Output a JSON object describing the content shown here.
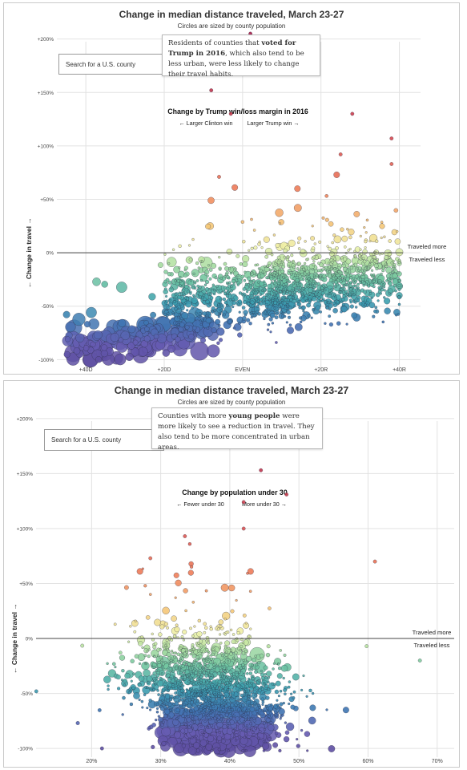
{
  "panels": [
    {
      "title": "Change in median distance traveled, March 23-27",
      "subtitle": "Circles are sized by county population",
      "search_placeholder": "Search for a U.S. county",
      "note": {
        "pre": "Residents of counties that ",
        "bold": "voted for Trump in 2016",
        "post": ", which also tend to be less urban, were less likely to change their travel habits."
      },
      "subheading": "Change by Trump win/loss margin in 2016",
      "left_hint": "← Larger Clinton win",
      "right_hint": "Larger Trump win →",
      "ylabel": "← Change in travel →",
      "above_label": "Traveled more",
      "below_label": "Traveled less",
      "chart_data": {
        "type": "scatter",
        "title": "Change in median distance traveled, March 23-27",
        "xlabel": "Trump win/loss margin in 2016",
        "ylabel": "Change in travel",
        "x_ticks": [
          "+40D",
          "+20D",
          "EVEN",
          "+20R",
          "+40R"
        ],
        "y_ticks": [
          "+200%",
          "+150%",
          "+100%",
          "+50%",
          "0%",
          "-50%",
          "-100%"
        ],
        "xlim": [
          -48,
          45
        ],
        "ylim": [
          -105,
          205
        ],
        "grid": true,
        "color_encoding": "change in travel (purple = lower, red = higher)",
        "size_encoding": "county population",
        "trend": "travel change rises from about -85% in large Clinton-won counties to about -25% in large Trump-won counties",
        "notable_points": [
          {
            "x": -43,
            "y": -70,
            "size": "large"
          },
          {
            "x": -35,
            "y": -95,
            "size": "large"
          },
          {
            "x": -26,
            "y": -96,
            "size": "large"
          },
          {
            "x": -16,
            "y": -90,
            "size": "large"
          },
          {
            "x": 2,
            "y": 205,
            "size": "small"
          },
          {
            "x": -8,
            "y": 152,
            "size": "small"
          },
          {
            "x": -3,
            "y": 130,
            "size": "small"
          },
          {
            "x": 28,
            "y": 130,
            "size": "small"
          },
          {
            "x": 38,
            "y": 107,
            "size": "small"
          },
          {
            "x": 25,
            "y": 92,
            "size": "small"
          },
          {
            "x": 38,
            "y": 83,
            "size": "small"
          },
          {
            "x": 24,
            "y": 73,
            "size": "medium"
          },
          {
            "x": -6,
            "y": 71,
            "size": "small"
          },
          {
            "x": -2,
            "y": 61,
            "size": "medium"
          },
          {
            "x": 14,
            "y": 60,
            "size": "medium"
          }
        ]
      }
    },
    {
      "title": "Change in median distance traveled, March 23-27",
      "subtitle": "Circles are sized by county population",
      "search_placeholder": "Search for a U.S. county",
      "note": {
        "pre": "Counties with more ",
        "bold": "young people",
        "post": " were more likely to see a reduction in travel. They also tend to be more concentrated in urban areas."
      },
      "subheading": "Change by population under 30",
      "left_hint": "← Fewer under 30",
      "right_hint": "More under 30 →",
      "ylabel": "← Change in travel →",
      "above_label": "Traveled more",
      "below_label": "Traveled less",
      "chart_data": {
        "type": "scatter",
        "title": "Change in median distance traveled, March 23-27",
        "xlabel": "Population under 30",
        "ylabel": "Change in travel",
        "x_ticks": [
          "20%",
          "30%",
          "40%",
          "50%",
          "60%",
          "70%"
        ],
        "y_ticks": [
          "+200%",
          "+150%",
          "+100%",
          "+50%",
          "0%",
          "-50%",
          "-100%"
        ],
        "xlim": [
          11.5,
          72
        ],
        "ylim": [
          -105,
          205
        ],
        "grid": true,
        "color_encoding": "change in travel (purple = lower, red = higher)",
        "size_encoding": "county population",
        "trend": "counties cluster between 28% and 45% under 30; larger, younger counties show deeper reductions near -90%",
        "notable_points": [
          {
            "x": 12,
            "y": -48,
            "size": "small"
          },
          {
            "x": 21.5,
            "y": -100,
            "size": "small"
          },
          {
            "x": 44.5,
            "y": 153,
            "size": "small"
          },
          {
            "x": 48.2,
            "y": 131,
            "size": "small"
          },
          {
            "x": 42,
            "y": 124,
            "size": "small"
          },
          {
            "x": 42,
            "y": 100,
            "size": "small"
          },
          {
            "x": 33.5,
            "y": 93,
            "size": "small"
          },
          {
            "x": 61,
            "y": 70,
            "size": "small"
          },
          {
            "x": 28.5,
            "y": 73,
            "size": "small"
          },
          {
            "x": 27,
            "y": 61,
            "size": "medium"
          },
          {
            "x": 43,
            "y": 61,
            "size": "medium"
          },
          {
            "x": 56.8,
            "y": -65,
            "size": "medium"
          },
          {
            "x": 67.5,
            "y": -20,
            "size": "small"
          },
          {
            "x": 59.8,
            "y": -7,
            "size": "small"
          },
          {
            "x": 52,
            "y": -63,
            "size": "medium"
          }
        ]
      }
    }
  ]
}
